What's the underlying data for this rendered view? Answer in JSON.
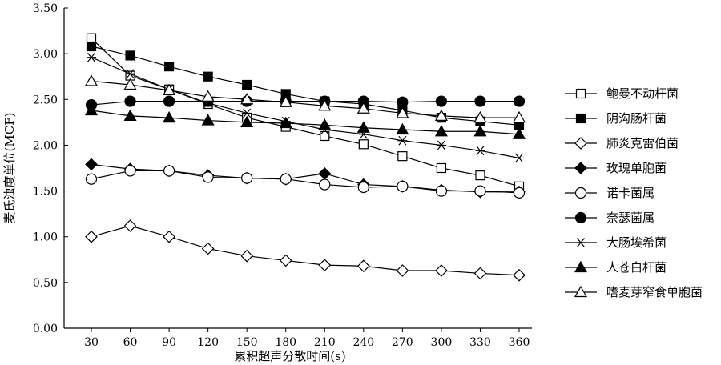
{
  "chart_data": {
    "type": "line",
    "title": "",
    "xlabel": "累积超声分散时间(s)",
    "ylabel": "麦氏浊度单位(MCF)",
    "x": [
      30,
      60,
      90,
      120,
      150,
      180,
      210,
      240,
      270,
      300,
      330,
      360
    ],
    "xticks": [
      "30",
      "60",
      "90",
      "120",
      "150",
      "180",
      "210",
      "240",
      "270",
      "300",
      "330",
      "360"
    ],
    "ylim": [
      0,
      3.5
    ],
    "yticks": [
      "0.00",
      "0.50",
      "1.00",
      "1.50",
      "2.00",
      "2.50",
      "3.00",
      "3.50"
    ],
    "grid": false,
    "legend_position": "right",
    "series": [
      {
        "name": "鲍曼不动杆菌",
        "marker": "square-open",
        "values": [
          3.17,
          2.76,
          2.61,
          2.45,
          2.3,
          2.2,
          2.1,
          2.01,
          1.88,
          1.75,
          1.67,
          1.55
        ]
      },
      {
        "name": "阴沟肠杆菌",
        "marker": "square-filled",
        "values": [
          3.08,
          2.98,
          2.86,
          2.75,
          2.66,
          2.56,
          2.48,
          2.45,
          2.38,
          2.3,
          2.26,
          2.22
        ]
      },
      {
        "name": "肺炎克雷伯菌",
        "marker": "diamond-open",
        "values": [
          1.0,
          1.12,
          1.0,
          0.87,
          0.79,
          0.74,
          0.69,
          0.68,
          0.63,
          0.63,
          0.6,
          0.58
        ]
      },
      {
        "name": "玫瑰单胞菌",
        "marker": "diamond-filled",
        "values": [
          1.79,
          1.74,
          1.72,
          1.67,
          1.64,
          1.63,
          1.69,
          1.57,
          1.55,
          1.51,
          1.49,
          1.49
        ]
      },
      {
        "name": "诺卡菌属",
        "marker": "circle-open",
        "values": [
          1.63,
          1.72,
          1.72,
          1.65,
          1.64,
          1.63,
          1.57,
          1.54,
          1.55,
          1.5,
          1.5,
          1.48
        ]
      },
      {
        "name": "奈瑟菌属",
        "marker": "circle-filled",
        "values": [
          2.44,
          2.48,
          2.48,
          2.48,
          2.48,
          2.48,
          2.48,
          2.48,
          2.47,
          2.48,
          2.48,
          2.48
        ]
      },
      {
        "name": "大肠埃希菌",
        "marker": "asterisk",
        "values": [
          2.96,
          2.78,
          2.61,
          2.46,
          2.35,
          2.26,
          2.17,
          2.12,
          2.05,
          2.0,
          1.94,
          1.86
        ]
      },
      {
        "name": "人苍白杆菌",
        "marker": "triangle-filled",
        "values": [
          2.38,
          2.32,
          2.3,
          2.27,
          2.25,
          2.24,
          2.22,
          2.19,
          2.17,
          2.15,
          2.15,
          2.12
        ]
      },
      {
        "name": "嗜麦芽窄食单胞菌",
        "marker": "triangle-open",
        "values": [
          2.7,
          2.66,
          2.6,
          2.53,
          2.5,
          2.47,
          2.43,
          2.4,
          2.35,
          2.32,
          2.3,
          2.3
        ]
      }
    ]
  }
}
